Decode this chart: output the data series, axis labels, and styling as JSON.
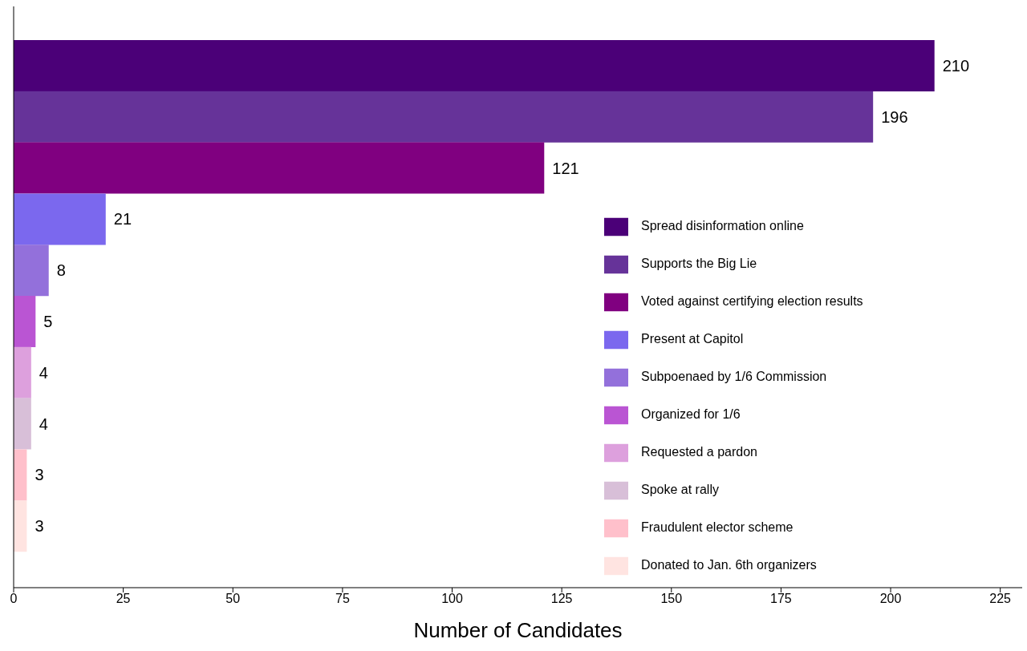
{
  "chart_data": {
    "type": "bar",
    "orientation": "horizontal",
    "stacked": true,
    "xlabel": "Number of Candidates",
    "categories": [
      null,
      null,
      null,
      null,
      null,
      null,
      null,
      null,
      null,
      null
    ],
    "series": [
      {
        "name": "Spread disinformation online",
        "color": "#4b0078",
        "values": [
          210,
          null,
          null,
          null,
          null,
          null,
          null,
          null,
          null,
          null
        ]
      },
      {
        "name": "Supports the Big Lie",
        "color": "#663399",
        "values": [
          null,
          196,
          null,
          null,
          null,
          null,
          null,
          null,
          null,
          null
        ]
      },
      {
        "name": "Voted against certifying election results",
        "color": "#800080",
        "values": [
          null,
          null,
          121,
          null,
          null,
          null,
          null,
          null,
          null,
          null
        ]
      },
      {
        "name": "Present at Capitol",
        "color": "#7b68ee",
        "values": [
          null,
          null,
          null,
          21,
          null,
          null,
          null,
          null,
          null,
          null
        ]
      },
      {
        "name": "Subpoenaed by 1/6 Commission",
        "color": "#9370db",
        "values": [
          null,
          null,
          null,
          null,
          8,
          null,
          null,
          null,
          null,
          null
        ]
      },
      {
        "name": "Organized for 1/6",
        "color": "#ba55d3",
        "values": [
          null,
          null,
          null,
          null,
          null,
          5,
          null,
          null,
          null,
          null
        ]
      },
      {
        "name": "Requested a pardon",
        "color": "#dda0dd",
        "values": [
          null,
          null,
          null,
          null,
          null,
          null,
          4,
          null,
          null,
          null
        ]
      },
      {
        "name": "Spoke at rally",
        "color": "#d8bfd8",
        "values": [
          null,
          null,
          null,
          null,
          null,
          null,
          null,
          4,
          null,
          null
        ]
      },
      {
        "name": "Fraudulent elector scheme",
        "color": "#ffc0cb",
        "values": [
          null,
          null,
          null,
          null,
          null,
          null,
          null,
          null,
          3,
          null
        ]
      },
      {
        "name": "Donated to Jan. 6th organizers",
        "color": "#ffe4e1",
        "values": [
          null,
          null,
          null,
          null,
          null,
          null,
          null,
          null,
          null,
          3
        ]
      }
    ],
    "xlim": [
      0,
      230
    ],
    "xticks": [
      0,
      25,
      50,
      75,
      100,
      125,
      150,
      175,
      200,
      225
    ],
    "data_labels": true,
    "grid": false,
    "legend": "right"
  }
}
